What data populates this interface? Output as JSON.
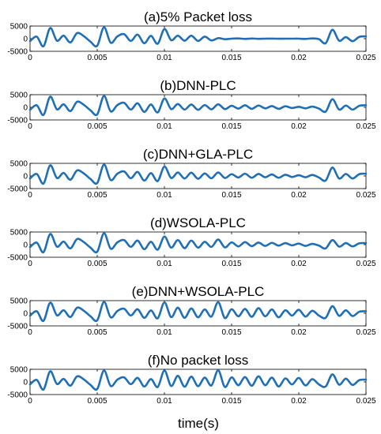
{
  "chart_data": [
    {
      "type": "line",
      "title": "(a)5% Packet loss",
      "xlim": [
        0,
        0.025
      ],
      "ylim": [
        -5000,
        5000
      ],
      "x_ticks": [
        "0",
        "0.005",
        "0.01",
        "0.015",
        "0.02",
        "0.025"
      ],
      "y_ticks": [
        "5000",
        "0",
        "-5000"
      ],
      "color": "#1f6fb8",
      "series": [
        {
          "x": [
            0,
            0.0005,
            0.001,
            0.0015,
            0.002,
            0.0025,
            0.003,
            0.0035,
            0.004,
            0.0045,
            0.005,
            0.0055,
            0.006,
            0.0065,
            0.007,
            0.0075,
            0.008,
            0.0085,
            0.009,
            0.0095,
            0.01,
            0.0105,
            0.011,
            0.0115,
            0.012,
            0.0125,
            0.013,
            0.0135,
            0.014,
            0.0145,
            0.015,
            0.0155,
            0.016,
            0.0165,
            0.017,
            0.0175,
            0.018,
            0.0185,
            0.019,
            0.0195,
            0.02,
            0.0205,
            0.021,
            0.0215,
            0.022,
            0.0225,
            0.023,
            0.0235,
            0.024,
            0.0245,
            0.025
          ],
          "values": [
            -1000,
            800,
            -3000,
            4200,
            -800,
            1200,
            -1500,
            2200,
            1000,
            -1200,
            -2800,
            4500,
            -1600,
            900,
            1800,
            -900,
            1600,
            -1800,
            1100,
            -2000,
            3800,
            -600,
            1200,
            -800,
            1200,
            -900,
            800,
            -700,
            200,
            -200,
            0,
            100,
            -100,
            50,
            -50,
            0,
            30,
            -30,
            0,
            0,
            0,
            -100,
            100,
            -200,
            -1800,
            3500,
            -800,
            600,
            -1000,
            700,
            900
          ]
        }
      ]
    },
    {
      "type": "line",
      "title": "(b)DNN-PLC",
      "xlim": [
        0,
        0.025
      ],
      "ylim": [
        -5000,
        5000
      ],
      "x_ticks": [
        "0",
        "0.005",
        "0.01",
        "0.015",
        "0.02",
        "0.025"
      ],
      "y_ticks": [
        "5000",
        "0",
        "-5000"
      ],
      "color": "#1f6fb8",
      "series": [
        {
          "x": [
            0,
            0.0005,
            0.001,
            0.0015,
            0.002,
            0.0025,
            0.003,
            0.0035,
            0.004,
            0.0045,
            0.005,
            0.0055,
            0.006,
            0.0065,
            0.007,
            0.0075,
            0.008,
            0.0085,
            0.009,
            0.0095,
            0.01,
            0.0105,
            0.011,
            0.0115,
            0.012,
            0.0125,
            0.013,
            0.0135,
            0.014,
            0.0145,
            0.015,
            0.0155,
            0.016,
            0.0165,
            0.017,
            0.0175,
            0.018,
            0.0185,
            0.019,
            0.0195,
            0.02,
            0.0205,
            0.021,
            0.0215,
            0.022,
            0.0225,
            0.023,
            0.0235,
            0.024,
            0.0245,
            0.025
          ],
          "values": [
            -1000,
            800,
            -3000,
            4200,
            -800,
            1200,
            -1500,
            2200,
            1000,
            -1200,
            -2800,
            4500,
            -1600,
            900,
            1800,
            -900,
            1600,
            -1800,
            1100,
            -2000,
            3500,
            -700,
            1300,
            -900,
            1100,
            -1000,
            900,
            -800,
            1200,
            -700,
            600,
            -500,
            800,
            -600,
            700,
            -400,
            500,
            -600,
            400,
            -300,
            200,
            -400,
            300,
            -500,
            -1700,
            3200,
            -900,
            700,
            -900,
            600,
            800
          ]
        }
      ]
    },
    {
      "type": "line",
      "title": "(c)DNN+GLA-PLC",
      "xlim": [
        0,
        0.025
      ],
      "ylim": [
        -5000,
        5000
      ],
      "x_ticks": [
        "0",
        "0.005",
        "0.01",
        "0.015",
        "0.02",
        "0.025"
      ],
      "y_ticks": [
        "5000",
        "0",
        "-5000"
      ],
      "color": "#1f6fb8",
      "series": [
        {
          "x": [
            0,
            0.0005,
            0.001,
            0.0015,
            0.002,
            0.0025,
            0.003,
            0.0035,
            0.004,
            0.0045,
            0.005,
            0.0055,
            0.006,
            0.0065,
            0.007,
            0.0075,
            0.008,
            0.0085,
            0.009,
            0.0095,
            0.01,
            0.0105,
            0.011,
            0.0115,
            0.012,
            0.0125,
            0.013,
            0.0135,
            0.014,
            0.0145,
            0.015,
            0.0155,
            0.016,
            0.0165,
            0.017,
            0.0175,
            0.018,
            0.0185,
            0.019,
            0.0195,
            0.02,
            0.0205,
            0.021,
            0.0215,
            0.022,
            0.0225,
            0.023,
            0.0235,
            0.024,
            0.0245,
            0.025
          ],
          "values": [
            -1000,
            800,
            -3000,
            4200,
            -800,
            1200,
            -1500,
            2200,
            1000,
            -1200,
            -2800,
            4500,
            -1600,
            900,
            1800,
            -900,
            1600,
            -1800,
            1100,
            -2000,
            3700,
            -800,
            1400,
            -1000,
            1300,
            -1100,
            1000,
            -900,
            1400,
            -800,
            700,
            -600,
            900,
            -700,
            800,
            -500,
            600,
            -700,
            500,
            -400,
            300,
            -500,
            400,
            -600,
            -1800,
            3300,
            -1000,
            800,
            -1000,
            700,
            900
          ]
        }
      ]
    },
    {
      "type": "line",
      "title": "(d)WSOLA-PLC",
      "xlim": [
        0,
        0.025
      ],
      "ylim": [
        -5000,
        5000
      ],
      "x_ticks": [
        "0",
        "0.005",
        "0.01",
        "0.015",
        "0.02",
        "0.025"
      ],
      "y_ticks": [
        "5000",
        "0",
        "-5000"
      ],
      "color": "#1f6fb8",
      "series": [
        {
          "x": [
            0,
            0.0005,
            0.001,
            0.0015,
            0.002,
            0.0025,
            0.003,
            0.0035,
            0.004,
            0.0045,
            0.005,
            0.0055,
            0.006,
            0.0065,
            0.007,
            0.0075,
            0.008,
            0.0085,
            0.009,
            0.0095,
            0.01,
            0.0105,
            0.011,
            0.0115,
            0.012,
            0.0125,
            0.013,
            0.0135,
            0.014,
            0.0145,
            0.015,
            0.0155,
            0.016,
            0.0165,
            0.017,
            0.0175,
            0.018,
            0.0185,
            0.019,
            0.0195,
            0.02,
            0.0205,
            0.021,
            0.0215,
            0.022,
            0.0225,
            0.023,
            0.0235,
            0.024,
            0.0245,
            0.025
          ],
          "values": [
            -1000,
            800,
            -3000,
            4200,
            -800,
            1200,
            -1500,
            2200,
            1000,
            -1200,
            -2800,
            4500,
            -1600,
            900,
            1800,
            -900,
            1600,
            -1800,
            1100,
            -2000,
            3200,
            -1200,
            1800,
            -1400,
            1600,
            -1200,
            1100,
            -900,
            2000,
            -1100,
            900,
            -700,
            1000,
            -600,
            800,
            -500,
            700,
            -400,
            600,
            -300,
            400,
            -500,
            300,
            -400,
            -1500,
            1800,
            -800,
            600,
            -700,
            500,
            600
          ]
        }
      ]
    },
    {
      "type": "line",
      "title": "(e)DNN+WSOLA-PLC",
      "xlim": [
        0,
        0.025
      ],
      "ylim": [
        -5000,
        5000
      ],
      "x_ticks": [
        "0",
        "0.005",
        "0.01",
        "0.015",
        "0.02",
        "0.025"
      ],
      "y_ticks": [
        "5000",
        "0",
        "-5000"
      ],
      "color": "#1f6fb8",
      "series": [
        {
          "x": [
            0,
            0.0005,
            0.001,
            0.0015,
            0.002,
            0.0025,
            0.003,
            0.0035,
            0.004,
            0.0045,
            0.005,
            0.0055,
            0.006,
            0.0065,
            0.007,
            0.0075,
            0.008,
            0.0085,
            0.009,
            0.0095,
            0.01,
            0.0105,
            0.011,
            0.0115,
            0.012,
            0.0125,
            0.013,
            0.0135,
            0.014,
            0.0145,
            0.015,
            0.0155,
            0.016,
            0.0165,
            0.017,
            0.0175,
            0.018,
            0.0185,
            0.019,
            0.0195,
            0.02,
            0.0205,
            0.021,
            0.0215,
            0.022,
            0.0225,
            0.023,
            0.0235,
            0.024,
            0.0245,
            0.025
          ],
          "values": [
            -1000,
            800,
            -3000,
            4200,
            -800,
            1200,
            -1500,
            2200,
            1000,
            -1200,
            -2800,
            4500,
            -1600,
            900,
            1800,
            -900,
            1600,
            -1800,
            1100,
            -2000,
            4300,
            -1500,
            2200,
            -1800,
            1900,
            -1600,
            1500,
            -1300,
            4400,
            -1900,
            1600,
            -1200,
            1700,
            -1400,
            2000,
            -1200,
            1500,
            -1600,
            1200,
            -900,
            1400,
            -1300,
            1000,
            -900,
            -1800,
            2800,
            -1000,
            1200,
            -1100,
            600,
            800
          ]
        }
      ]
    },
    {
      "type": "line",
      "title": "(f)No packet loss",
      "xlim": [
        0,
        0.025
      ],
      "ylim": [
        -5000,
        5000
      ],
      "x_ticks": [
        "0",
        "0.005",
        "0.01",
        "0.015",
        "0.02",
        "0.025"
      ],
      "y_ticks": [
        "5000",
        "0",
        "-5000"
      ],
      "color": "#1f6fb8",
      "series": [
        {
          "x": [
            0,
            0.0005,
            0.001,
            0.0015,
            0.002,
            0.0025,
            0.003,
            0.0035,
            0.004,
            0.0045,
            0.005,
            0.0055,
            0.006,
            0.0065,
            0.007,
            0.0075,
            0.008,
            0.0085,
            0.009,
            0.0095,
            0.01,
            0.0105,
            0.011,
            0.0115,
            0.012,
            0.0125,
            0.013,
            0.0135,
            0.014,
            0.0145,
            0.015,
            0.0155,
            0.016,
            0.0165,
            0.017,
            0.0175,
            0.018,
            0.0185,
            0.019,
            0.0195,
            0.02,
            0.0205,
            0.021,
            0.0215,
            0.022,
            0.0225,
            0.023,
            0.0235,
            0.024,
            0.0245,
            0.025
          ],
          "values": [
            -1000,
            800,
            -3000,
            4200,
            -800,
            1200,
            -1500,
            2200,
            1000,
            -1200,
            -2800,
            4500,
            -1600,
            900,
            1800,
            -900,
            1600,
            -1800,
            1100,
            -2000,
            4500,
            -1600,
            2400,
            -1900,
            2100,
            -1700,
            1700,
            -1400,
            4600,
            -2000,
            1800,
            -1300,
            1900,
            -1500,
            2200,
            -1300,
            1700,
            -1800,
            1400,
            -1000,
            1600,
            -1400,
            1100,
            -1000,
            -1800,
            3000,
            -1100,
            1300,
            -1200,
            700,
            900
          ]
        }
      ]
    }
  ],
  "figure": {
    "xlabel": "time(s)"
  }
}
